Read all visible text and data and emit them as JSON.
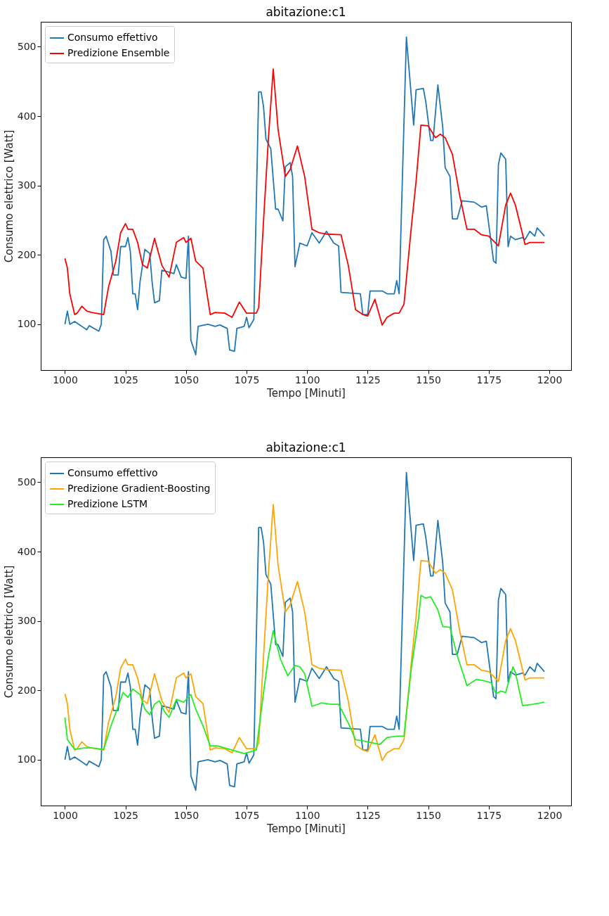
{
  "chart_data": [
    {
      "type": "line",
      "title": "abitazione:c1",
      "xlabel": "Tempo [Minuti]",
      "ylabel": "Consumo elettrico [Watt]",
      "xlim": [
        990,
        1209
      ],
      "ylim": [
        34,
        536
      ],
      "xticks": [
        1000,
        1025,
        1050,
        1075,
        1100,
        1125,
        1150,
        1175,
        1200
      ],
      "yticks": [
        100,
        200,
        300,
        400,
        500
      ],
      "grid": false,
      "legend": "top left",
      "marker": "none",
      "line_style": "solid",
      "series": [
        {
          "name": "Consumo effettivo",
          "color": "#1f77b4",
          "x": [
            1000,
            1001,
            1002,
            1004,
            1007,
            1009,
            1010,
            1014,
            1015,
            1016,
            1017,
            1019,
            1020,
            1022,
            1023,
            1025,
            1026,
            1027,
            1028,
            1029,
            1030,
            1031,
            1033,
            1035,
            1036,
            1037,
            1039,
            1040,
            1043,
            1045,
            1046,
            1048,
            1050,
            1051,
            1052,
            1054,
            1055,
            1059,
            1062,
            1064,
            1067,
            1068,
            1070,
            1071,
            1074,
            1075,
            1076,
            1078,
            1080,
            1081,
            1082,
            1083,
            1085,
            1087,
            1088,
            1090,
            1091,
            1093,
            1094,
            1095,
            1097,
            1100,
            1102,
            1105,
            1108,
            1111,
            1113,
            1114,
            1122,
            1123,
            1125,
            1126,
            1131,
            1133,
            1136,
            1137,
            1138,
            1141,
            1144,
            1145,
            1148,
            1149,
            1151,
            1152,
            1154,
            1156,
            1157,
            1159,
            1160,
            1162,
            1164,
            1169,
            1172,
            1174,
            1177,
            1178,
            1179,
            1180,
            1182,
            1183,
            1184,
            1186,
            1189,
            1190,
            1192,
            1194,
            1195,
            1198
          ],
          "values": [
            100,
            119,
            100,
            104,
            97,
            92,
            98,
            90,
            100,
            222,
            227,
            205,
            171,
            171,
            212,
            212,
            225,
            205,
            144,
            144,
            121,
            161,
            208,
            202,
            161,
            131,
            134,
            178,
            175,
            173,
            186,
            168,
            166,
            227,
            77,
            56,
            97,
            100,
            97,
            99,
            94,
            63,
            61,
            94,
            97,
            110,
            95,
            107,
            435,
            435,
            414,
            367,
            353,
            266,
            266,
            249,
            327,
            333,
            313,
            183,
            217,
            213,
            232,
            217,
            234,
            217,
            213,
            146,
            144,
            114,
            114,
            148,
            148,
            144,
            144,
            163,
            144,
            514,
            387,
            438,
            440,
            421,
            365,
            365,
            445,
            384,
            326,
            313,
            252,
            252,
            278,
            276,
            269,
            271,
            191,
            188,
            330,
            347,
            338,
            212,
            227,
            222,
            225,
            222,
            234,
            227,
            239,
            227
          ]
        },
        {
          "name": "Predizione Ensemble",
          "color": "#ff0000",
          "x": [
            1000,
            1001,
            1002,
            1004,
            1005,
            1007,
            1009,
            1011,
            1016,
            1018,
            1021,
            1023,
            1025,
            1026,
            1028,
            1030,
            1032,
            1034,
            1037,
            1040,
            1043,
            1046,
            1049,
            1050,
            1052,
            1054,
            1057,
            1060,
            1062,
            1066,
            1069,
            1072,
            1075,
            1079,
            1080,
            1082,
            1084,
            1086,
            1088,
            1091,
            1093,
            1096,
            1099,
            1102,
            1105,
            1108,
            1114,
            1117,
            1120,
            1123,
            1125,
            1128,
            1131,
            1133,
            1136,
            1138,
            1140,
            1143,
            1145,
            1147,
            1150,
            1153,
            1155,
            1157,
            1160,
            1163,
            1166,
            1169,
            1172,
            1175,
            1179,
            1182,
            1184,
            1186,
            1190,
            1192,
            1198
          ],
          "values": [
            195,
            181,
            144,
            114,
            116,
            126,
            119,
            117,
            114,
            154,
            191,
            232,
            245,
            237,
            237,
            218,
            186,
            181,
            224,
            185,
            168,
            218,
            225,
            218,
            224,
            191,
            181,
            114,
            117,
            116,
            110,
            132,
            116,
            116,
            124,
            249,
            367,
            468,
            381,
            313,
            323,
            357,
            313,
            237,
            232,
            230,
            229,
            185,
            121,
            114,
            112,
            136,
            99,
            110,
            116,
            116,
            129,
            239,
            306,
            387,
            386,
            369,
            374,
            369,
            345,
            286,
            237,
            237,
            229,
            227,
            213,
            272,
            289,
            272,
            215,
            218,
            218
          ]
        }
      ]
    },
    {
      "type": "line",
      "title": "abitazione:c1",
      "xlabel": "Tempo [Minuti]",
      "ylabel": "Consumo elettrico [Watt]",
      "xlim": [
        990,
        1209
      ],
      "ylim": [
        34,
        536
      ],
      "xticks": [
        1000,
        1025,
        1050,
        1075,
        1100,
        1125,
        1150,
        1175,
        1200
      ],
      "yticks": [
        100,
        200,
        300,
        400,
        500
      ],
      "grid": false,
      "legend": "top left",
      "marker": "none",
      "line_style": "solid",
      "series": [
        {
          "name": "Consumo effettivo",
          "color": "#1f77b4",
          "x": [
            1000,
            1001,
            1002,
            1004,
            1007,
            1009,
            1010,
            1014,
            1015,
            1016,
            1017,
            1019,
            1020,
            1022,
            1023,
            1025,
            1026,
            1027,
            1028,
            1029,
            1030,
            1031,
            1033,
            1035,
            1036,
            1037,
            1039,
            1040,
            1043,
            1045,
            1046,
            1048,
            1050,
            1051,
            1052,
            1054,
            1055,
            1059,
            1062,
            1064,
            1067,
            1068,
            1070,
            1071,
            1074,
            1075,
            1076,
            1078,
            1080,
            1081,
            1082,
            1083,
            1085,
            1087,
            1088,
            1090,
            1091,
            1093,
            1094,
            1095,
            1097,
            1100,
            1102,
            1105,
            1108,
            1111,
            1113,
            1114,
            1122,
            1123,
            1125,
            1126,
            1131,
            1133,
            1136,
            1137,
            1138,
            1141,
            1144,
            1145,
            1148,
            1149,
            1151,
            1152,
            1154,
            1156,
            1157,
            1159,
            1160,
            1162,
            1164,
            1169,
            1172,
            1174,
            1177,
            1178,
            1179,
            1180,
            1182,
            1183,
            1184,
            1186,
            1189,
            1190,
            1192,
            1194,
            1195,
            1198
          ],
          "values": [
            100,
            119,
            100,
            104,
            97,
            92,
            98,
            90,
            100,
            222,
            227,
            205,
            171,
            171,
            212,
            212,
            225,
            205,
            144,
            144,
            121,
            161,
            208,
            202,
            161,
            131,
            134,
            178,
            175,
            173,
            186,
            168,
            166,
            227,
            77,
            56,
            97,
            100,
            97,
            99,
            94,
            63,
            61,
            94,
            97,
            110,
            95,
            107,
            435,
            435,
            414,
            367,
            353,
            266,
            266,
            249,
            327,
            333,
            313,
            183,
            217,
            213,
            232,
            217,
            234,
            217,
            213,
            146,
            144,
            114,
            114,
            148,
            148,
            144,
            144,
            163,
            144,
            514,
            387,
            438,
            440,
            421,
            365,
            365,
            445,
            384,
            326,
            313,
            252,
            252,
            278,
            276,
            269,
            271,
            191,
            188,
            330,
            347,
            338,
            212,
            227,
            222,
            225,
            222,
            234,
            227,
            239,
            227
          ]
        },
        {
          "name": "Predizione Gradient-Boosting",
          "color": "#ffa500",
          "x": [
            1000,
            1001,
            1002,
            1004,
            1005,
            1007,
            1009,
            1011,
            1016,
            1018,
            1021,
            1023,
            1025,
            1026,
            1028,
            1030,
            1032,
            1034,
            1037,
            1040,
            1043,
            1046,
            1049,
            1050,
            1052,
            1054,
            1057,
            1060,
            1062,
            1066,
            1069,
            1072,
            1075,
            1079,
            1080,
            1082,
            1084,
            1086,
            1088,
            1091,
            1093,
            1096,
            1099,
            1102,
            1105,
            1108,
            1114,
            1117,
            1120,
            1123,
            1125,
            1128,
            1131,
            1133,
            1136,
            1138,
            1140,
            1143,
            1145,
            1147,
            1150,
            1153,
            1155,
            1157,
            1160,
            1163,
            1166,
            1169,
            1172,
            1175,
            1179,
            1182,
            1184,
            1186,
            1190,
            1192,
            1198
          ],
          "values": [
            195,
            181,
            144,
            114,
            116,
            126,
            119,
            117,
            114,
            154,
            191,
            232,
            245,
            237,
            237,
            218,
            186,
            181,
            224,
            185,
            168,
            218,
            225,
            218,
            224,
            191,
            181,
            114,
            117,
            116,
            110,
            132,
            116,
            116,
            124,
            249,
            367,
            468,
            381,
            313,
            323,
            357,
            313,
            237,
            232,
            230,
            229,
            185,
            121,
            114,
            112,
            136,
            99,
            110,
            116,
            116,
            129,
            239,
            306,
            387,
            386,
            369,
            374,
            369,
            345,
            286,
            237,
            237,
            229,
            227,
            213,
            272,
            289,
            272,
            215,
            218,
            218
          ]
        },
        {
          "name": "Predizione LSTM",
          "color": "#22ee22",
          "x": [
            1000,
            1001,
            1004,
            1008,
            1011,
            1016,
            1019,
            1022,
            1024,
            1026,
            1028,
            1031,
            1033,
            1035,
            1037,
            1039,
            1041,
            1043,
            1046,
            1049,
            1052,
            1054,
            1057,
            1060,
            1063,
            1068,
            1074,
            1079,
            1082,
            1084,
            1086,
            1089,
            1092,
            1095,
            1097,
            1099,
            1102,
            1106,
            1110,
            1113,
            1117,
            1120,
            1125,
            1130,
            1133,
            1137,
            1140,
            1143,
            1146,
            1147,
            1149,
            1151,
            1154,
            1156,
            1159,
            1162,
            1166,
            1170,
            1173,
            1176,
            1178,
            1180,
            1182,
            1185,
            1186,
            1189,
            1193,
            1198
          ],
          "values": [
            161,
            129,
            115,
            117,
            117,
            115,
            149,
            177,
            197,
            190,
            202,
            194,
            173,
            165,
            180,
            185,
            170,
            161,
            187,
            183,
            194,
            173,
            149,
            120,
            120,
            115,
            109,
            114,
            197,
            248,
            286,
            245,
            221,
            236,
            234,
            224,
            177,
            182,
            180,
            180,
            153,
            129,
            126,
            122,
            132,
            134,
            134,
            231,
            303,
            337,
            333,
            335,
            316,
            292,
            291,
            250,
            207,
            216,
            214,
            211,
            195,
            199,
            197,
            234,
            226,
            178,
            180,
            183
          ]
        }
      ]
    }
  ]
}
